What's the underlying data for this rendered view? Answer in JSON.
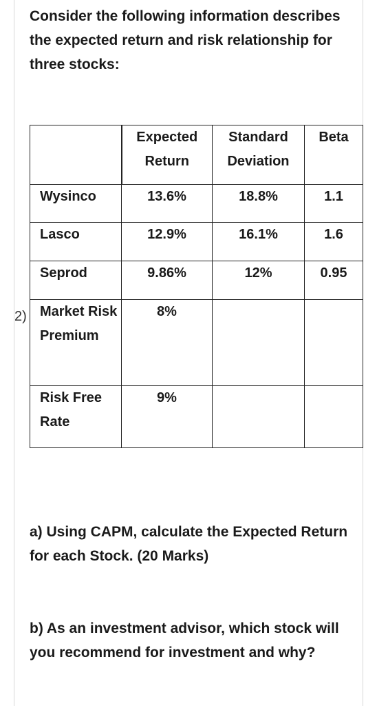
{
  "intro": "Consider the following information describes the expected return and risk relationship for three stocks:",
  "question_number": "2)",
  "table": {
    "headers": [
      "",
      "Expected Return",
      "Standard Deviation",
      "Beta"
    ],
    "rows": [
      {
        "name": "Wysinco",
        "expected_return": "13.6%",
        "std_dev": "18.8%",
        "beta": "1.1"
      },
      {
        "name": "Lasco",
        "expected_return": "12.9%",
        "std_dev": "16.1%",
        "beta": "1.6"
      },
      {
        "name": "Seprod",
        "expected_return": "9.86%",
        "std_dev": "12%",
        "beta": "0.95"
      },
      {
        "name": "Market Risk Premium",
        "expected_return": "8%",
        "std_dev": "",
        "beta": ""
      },
      {
        "name": "Risk Free Rate",
        "expected_return": "9%",
        "std_dev": "",
        "beta": ""
      }
    ]
  },
  "question_a": "a) Using CAPM, calculate the Expected Return for each Stock. (20 Marks)",
  "question_b": "b) As an investment advisor, which stock will you recommend for investment and why?"
}
